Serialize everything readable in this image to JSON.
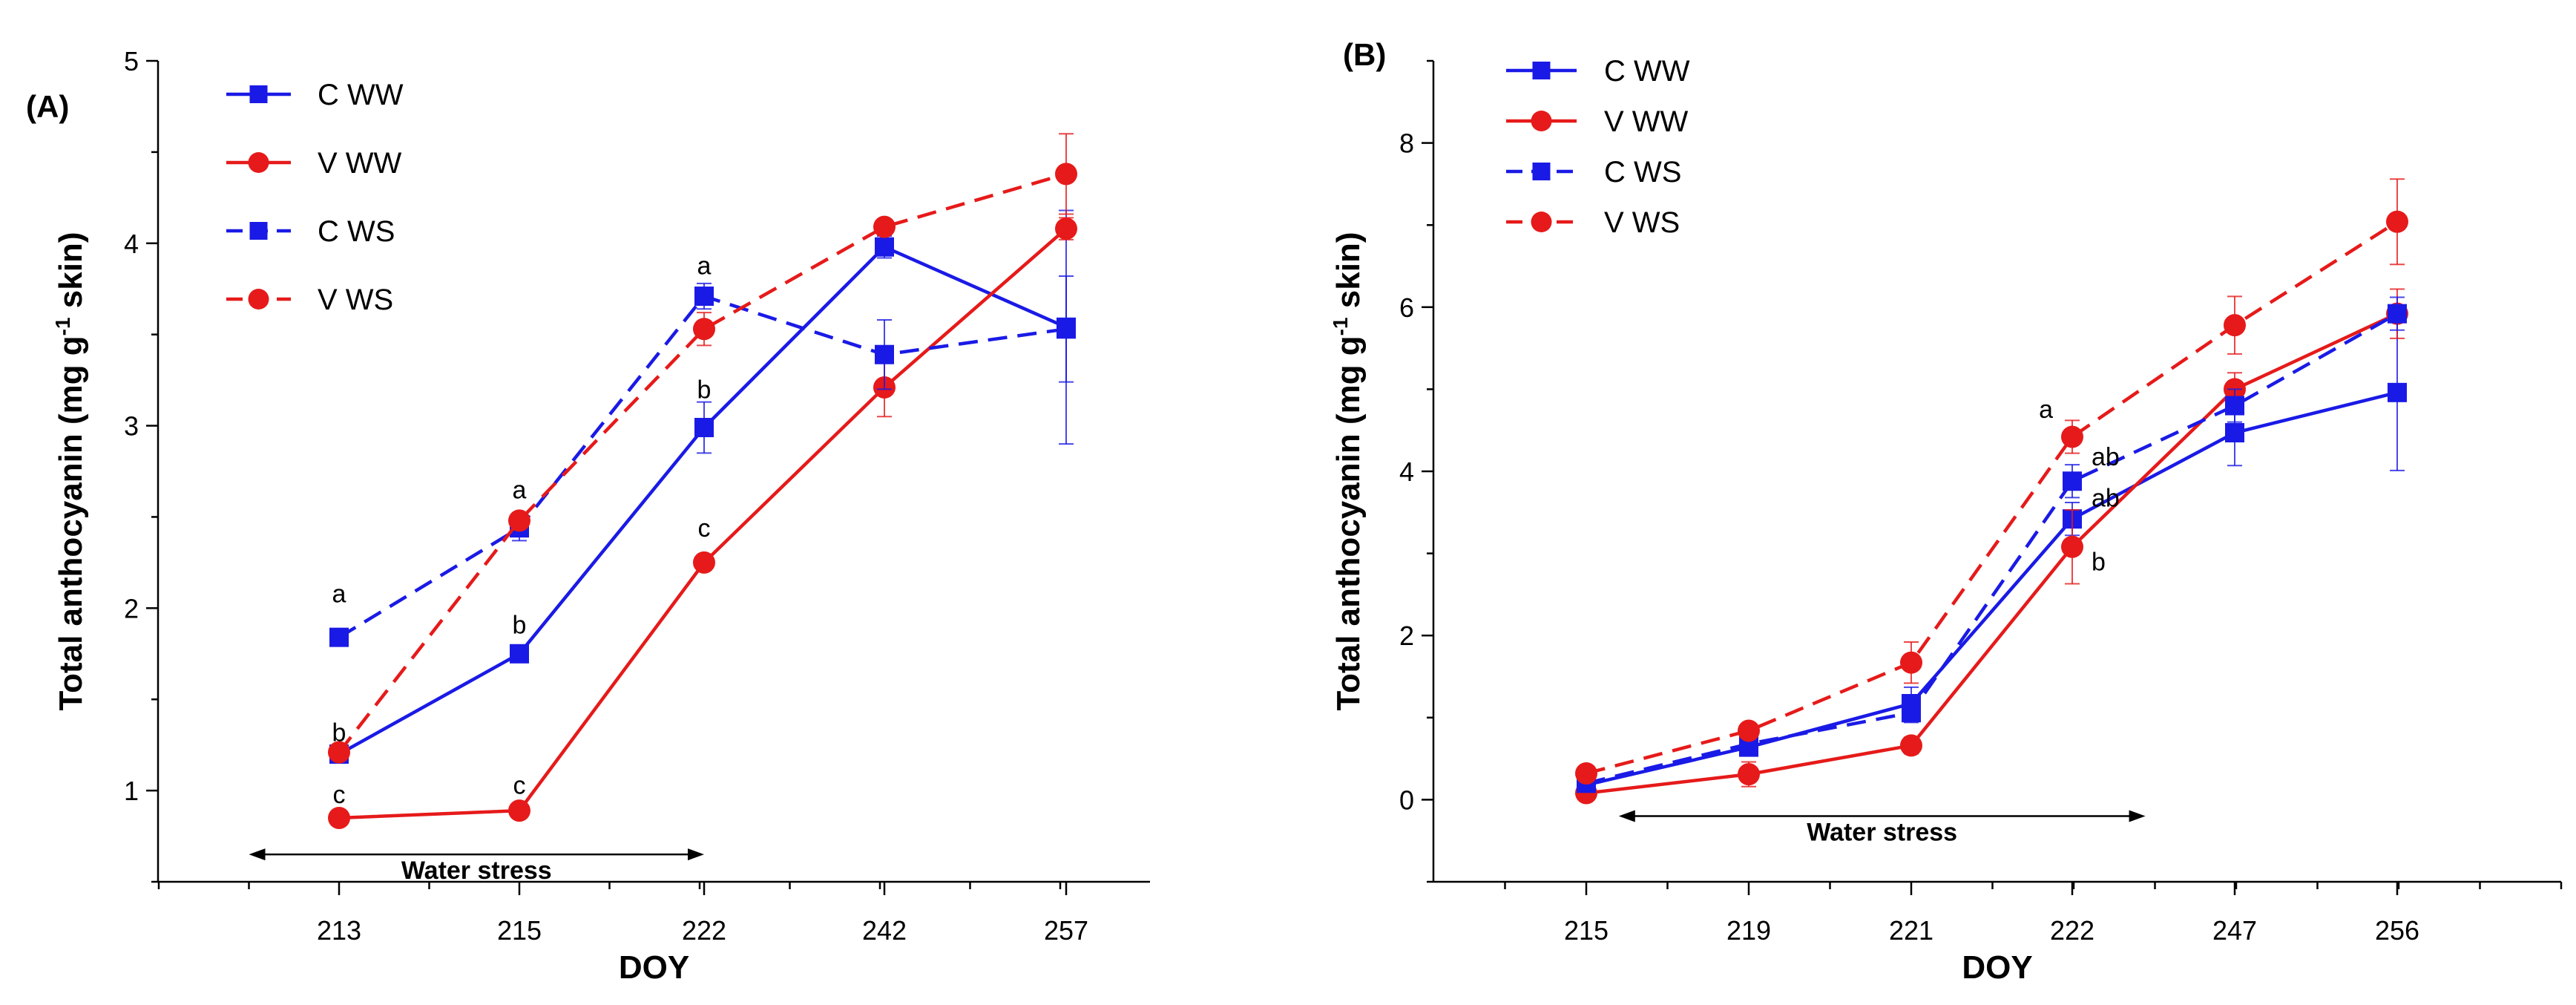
{
  "chart_data": [
    {
      "panel": "(A)",
      "type": "line",
      "xlabel": "DOY",
      "ylabel": "Total anthocyanin (mg g-1 skin)",
      "ylabel_parts": {
        "pre": "Total anthocyanin (mg g",
        "sup": "-1",
        "post": " skin)"
      },
      "categories": [
        "213",
        "215",
        "222",
        "242",
        "257"
      ],
      "ylim": [
        0.5,
        5
      ],
      "yticks": [
        "1",
        "2",
        "3",
        "4",
        "5"
      ],
      "legend": "top-left",
      "series": [
        {
          "name": "C WW",
          "color": "#1a1ae6",
          "dash": false,
          "marker": "square",
          "values": [
            1.2,
            1.75,
            2.99,
            3.98,
            3.54
          ],
          "errors": [
            0.02,
            0.03,
            0.14,
            0.06,
            0.64
          ]
        },
        {
          "name": "V WW",
          "color": "#e61a1a",
          "dash": false,
          "marker": "circle",
          "values": [
            0.85,
            0.89,
            2.25,
            3.21,
            4.08
          ],
          "errors": [
            0.02,
            0.02,
            0.04,
            0.16,
            0.06
          ]
        },
        {
          "name": "C WS",
          "color": "#1a1ae6",
          "dash": true,
          "marker": "square",
          "values": [
            1.84,
            2.44,
            3.71,
            3.39,
            3.53
          ],
          "errors": [
            0.02,
            0.07,
            0.07,
            0.19,
            0.29
          ]
        },
        {
          "name": "V WS",
          "color": "#e61a1a",
          "dash": true,
          "marker": "circle",
          "values": [
            1.21,
            2.48,
            3.53,
            4.09,
            4.38
          ],
          "errors": [
            0.02,
            0.04,
            0.09,
            0.04,
            0.22
          ]
        }
      ],
      "annotations": [
        {
          "text": "a",
          "cat": 0,
          "y": 2.08
        },
        {
          "text": "b",
          "cat": 0,
          "y": 1.32
        },
        {
          "text": "c",
          "cat": 0,
          "y": 0.98
        },
        {
          "text": "a",
          "cat": 1,
          "y": 2.65
        },
        {
          "text": "b",
          "cat": 1,
          "y": 1.91
        },
        {
          "text": "c",
          "cat": 1,
          "y": 1.03
        },
        {
          "text": "a",
          "cat": 2,
          "y": 3.88
        },
        {
          "text": "b",
          "cat": 2,
          "y": 3.2
        },
        {
          "text": "c",
          "cat": 2,
          "y": 2.44
        }
      ],
      "water_stress": {
        "label": "Water stress",
        "from_cat": -0.5,
        "to_cat": 2,
        "y": 0.65
      }
    },
    {
      "panel": "(B)",
      "type": "line",
      "xlabel": "DOY",
      "ylabel": "Total anthocyanin (mg g-1 skin)",
      "ylabel_parts": {
        "pre": "Total anthocyanin (mg g",
        "sup": "-1",
        "post": " skin)"
      },
      "categories": [
        "215",
        "219",
        "221",
        "222",
        "247",
        "256"
      ],
      "ylim": [
        -1,
        9
      ],
      "yticks": [
        "0",
        "2",
        "4",
        "6",
        "8"
      ],
      "legend": "top-left",
      "series": [
        {
          "name": "C WW",
          "color": "#1a1ae6",
          "dash": false,
          "marker": "square",
          "values": [
            0.18,
            0.64,
            1.17,
            3.42,
            4.47,
            4.96
          ],
          "errors": [
            0.03,
            0.1,
            0.2,
            0.2,
            0.4,
            0.95
          ]
        },
        {
          "name": "V WW",
          "color": "#e61a1a",
          "dash": false,
          "marker": "circle",
          "values": [
            0.08,
            0.31,
            0.66,
            3.08,
            5.0,
            5.92
          ],
          "errors": [
            0.03,
            0.15,
            0.1,
            0.45,
            0.2,
            0.3
          ]
        },
        {
          "name": "C WS",
          "color": "#1a1ae6",
          "dash": true,
          "marker": "square",
          "values": [
            0.2,
            0.68,
            1.06,
            3.88,
            4.8,
            5.92
          ],
          "errors": [
            0.03,
            0.1,
            0.12,
            0.2,
            0.2,
            0.2
          ]
        },
        {
          "name": "V WS",
          "color": "#e61a1a",
          "dash": true,
          "marker": "circle",
          "values": [
            0.32,
            0.84,
            1.67,
            4.42,
            5.78,
            7.04
          ],
          "errors": [
            0.03,
            0.06,
            0.25,
            0.2,
            0.35,
            0.52
          ]
        }
      ],
      "annotations": [
        {
          "text": "a",
          "cat": 3,
          "y": 4.76,
          "dx": -1
        },
        {
          "text": "ab",
          "cat": 3,
          "y": 4.18,
          "dx": 1
        },
        {
          "text": "ab",
          "cat": 3,
          "y": 3.68,
          "dx": 1
        },
        {
          "text": "b",
          "cat": 3,
          "y": 2.9,
          "dx": 1
        }
      ],
      "water_stress": {
        "label": "Water stress",
        "from_cat": 0.2,
        "to_cat": 3.45,
        "y": -0.2
      }
    }
  ]
}
